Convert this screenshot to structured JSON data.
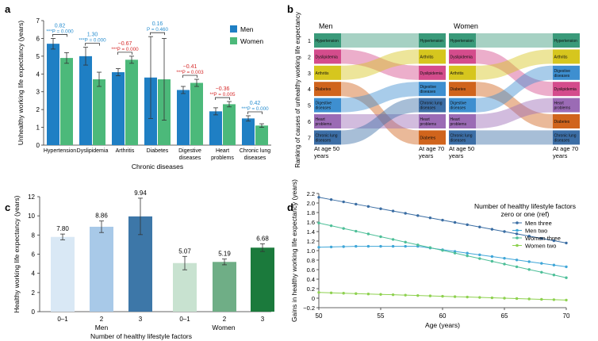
{
  "colors": {
    "men": "#1f7fc4",
    "women": "#4cb97a",
    "annot_blue": "#2a8fd0",
    "annot_red": "#d62a2a",
    "c_men": [
      "#d9e8f5",
      "#a8c9e8",
      "#3d77a8"
    ],
    "c_women": [
      "#c8e2d0",
      "#6fae86",
      "#1b7a3c"
    ],
    "d_men_three": "#3a6da3",
    "d_men_two": "#3fa6d8",
    "d_women_three": "#4dbf98",
    "d_women_two": "#8ed14f",
    "b_causes": [
      "#3a9a7a",
      "#d44c8c",
      "#d6c61e",
      "#d0641c",
      "#3e8fd0",
      "#9b6bb5",
      "#3c6ea6"
    ]
  },
  "panels": {
    "a": {
      "letter": "a"
    },
    "b": {
      "letter": "b"
    },
    "c": {
      "letter": "c"
    },
    "d": {
      "letter": "d"
    }
  },
  "chart_data": [
    {
      "panel": "a",
      "type": "bar",
      "xlabel": "Chronic diseases",
      "ylabel": "Unhealthy working life expectancy (years)",
      "ylim": [
        0,
        7
      ],
      "yticks": [
        0,
        1,
        2,
        3,
        4,
        5,
        6,
        7
      ],
      "categories": [
        "Hypertension",
        "Dyslipidemia",
        "Arthritis",
        "Diabetes",
        "Digestive diseases",
        "Heart problems",
        "Chronic lung diseases"
      ],
      "category_lines": [
        [
          "Hypertension"
        ],
        [
          "Dyslipidemia"
        ],
        [
          "Arthritis"
        ],
        [
          "Diabetes"
        ],
        [
          "Digestive",
          "diseases"
        ],
        [
          "Heart",
          "problems"
        ],
        [
          "Chronic lung",
          "diseases"
        ]
      ],
      "series": [
        {
          "name": "Men",
          "values": [
            5.7,
            5.0,
            4.1,
            3.8,
            3.1,
            1.9,
            1.5
          ],
          "err": [
            0.3,
            0.5,
            0.2,
            2.3,
            0.2,
            0.2,
            0.15
          ]
        },
        {
          "name": "Women",
          "values": [
            4.9,
            3.7,
            4.8,
            3.7,
            3.5,
            2.3,
            1.1
          ],
          "err": [
            0.3,
            0.4,
            0.2,
            2.3,
            0.2,
            0.15,
            0.1
          ]
        }
      ],
      "annotations": [
        {
          "diff": "0.82",
          "p": "***P = 0.000",
          "tone": "blue"
        },
        {
          "diff": "1.30",
          "p": "***P = 0.000",
          "tone": "blue"
        },
        {
          "diff": "−0.67",
          "p": "***P = 0.000",
          "tone": "red"
        },
        {
          "diff": "0.16",
          "p": "P = 0.460",
          "tone": "blue"
        },
        {
          "diff": "−0.41",
          "p": "***P = 0.003",
          "tone": "red"
        },
        {
          "diff": "−0.36",
          "p": "**P = 0.005",
          "tone": "red"
        },
        {
          "diff": "0.42",
          "p": "***P = 0.000",
          "tone": "blue"
        }
      ],
      "legend": [
        "Men",
        "Women"
      ]
    },
    {
      "panel": "b",
      "type": "alluvial",
      "ylabel": "Ranking of causes of unhealthy working life expectancy",
      "groups": [
        "Men",
        "Women"
      ],
      "left_label": [
        "At age 50",
        "years"
      ],
      "right_label": [
        "At age 70",
        "years"
      ],
      "ranks": [
        1,
        2,
        3,
        4,
        5,
        6,
        7
      ],
      "left_order": [
        "Hypertension",
        "Dyslipidemia",
        "Arthritis",
        "Diabetes",
        "Digestive diseases",
        "Heart problems",
        "Chronic lung diseases"
      ],
      "men_right_order": [
        "Hypertension",
        "Arthritis",
        "Dyslipidemia",
        "Digestive diseases",
        "Chronic lung diseases",
        "Heart problems",
        "Diabetes"
      ],
      "women_right_order": [
        "Hypertension",
        "Arthritis",
        "Digestive diseases",
        "Dyslipidemia",
        "Heart problems",
        "Diabetes",
        "Chronic lung diseases"
      ],
      "box_labels": {
        "Hypertension": [
          "Hypertension"
        ],
        "Dyslipidemia": [
          "Dyslipidemia"
        ],
        "Arthritis": [
          "Arthritis"
        ],
        "Diabetes": [
          "Diabetes"
        ],
        "Digestive diseases": [
          "Digestive",
          "diseases"
        ],
        "Heart problems": [
          "Heart",
          "problems"
        ],
        "Chronic lung diseases": [
          "Chronic lung",
          "diseases"
        ]
      }
    },
    {
      "panel": "c",
      "type": "bar",
      "xlabel": "Number of healthy lifestyle factors",
      "ylabel": "Healthy working life expectancy (years)",
      "ylim": [
        0,
        12
      ],
      "yticks": [
        0,
        2,
        4,
        6,
        8,
        10,
        12
      ],
      "groups": [
        "Men",
        "Women"
      ],
      "categories": [
        "0–1",
        "2",
        "3",
        "0–1",
        "2",
        "3"
      ],
      "values": [
        7.8,
        8.86,
        9.94,
        5.07,
        5.19,
        6.68
      ],
      "labels": [
        "7.80",
        "8.86",
        "9.94",
        "5.07",
        "5.19",
        "6.68"
      ],
      "err": [
        0.3,
        0.6,
        1.9,
        0.7,
        0.3,
        0.4
      ]
    },
    {
      "panel": "d",
      "type": "line",
      "title": [
        "Number of healthy lifestyle factors",
        "zero or one (ref)"
      ],
      "xlabel": "Age (years)",
      "ylabel": "Gains in healthy working life expectancy (years)",
      "xlim": [
        50,
        70
      ],
      "ylim": [
        -0.2,
        2.2
      ],
      "xticks": [
        50,
        55,
        60,
        65,
        70
      ],
      "yticks": [
        -0.2,
        0,
        0.2,
        0.4,
        0.6,
        0.8,
        1.0,
        1.2,
        1.4,
        1.6,
        1.8,
        2.0,
        2.2
      ],
      "ytick_labels": [
        "−0.2",
        "0",
        "0.2",
        "0.4",
        "0.6",
        "0.8",
        "1.0",
        "1.2",
        "1.4",
        "1.6",
        "1.8",
        "2.0",
        "2.2"
      ],
      "x": [
        50,
        51,
        52,
        53,
        54,
        55,
        56,
        57,
        58,
        59,
        60,
        61,
        62,
        63,
        64,
        65,
        66,
        67,
        68,
        69,
        70
      ],
      "series": [
        {
          "name": "Men three",
          "start": 2.12,
          "end": 1.16
        },
        {
          "name": "Men two",
          "start": 1.07,
          "end": 0.66,
          "flat_until": 58,
          "flat_value": 1.09
        },
        {
          "name": "Women three",
          "start": 1.58,
          "end": 0.43
        },
        {
          "name": "Women two",
          "start": 0.12,
          "end": -0.04
        }
      ],
      "legend_placement": "top-right"
    }
  ]
}
